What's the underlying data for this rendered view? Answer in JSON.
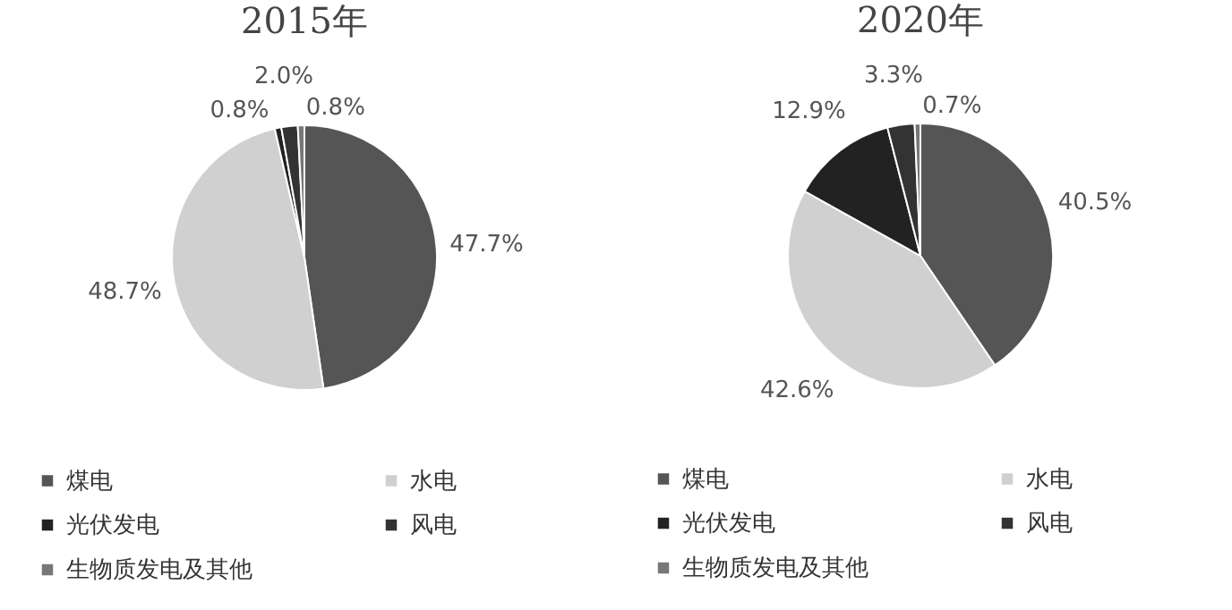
{
  "chart_data": [
    {
      "type": "pie",
      "title": "2015年",
      "categories": [
        "煤电",
        "水电",
        "光伏发电",
        "风电",
        "生物质发电及其他"
      ],
      "values": [
        47.7,
        48.7,
        0.8,
        2.0,
        0.8
      ],
      "value_labels": [
        "47.7%",
        "48.7%",
        "0.8%",
        "2.0%",
        "0.8%"
      ],
      "colors": [
        "#555555",
        "#d0d0d0",
        "#222222",
        "#333333",
        "#777777"
      ],
      "legend": "bottom"
    },
    {
      "type": "pie",
      "title": "2020年",
      "categories": [
        "煤电",
        "水电",
        "光伏发电",
        "风电",
        "生物质发电及其他"
      ],
      "values": [
        40.5,
        42.6,
        12.9,
        3.3,
        0.7
      ],
      "value_labels": [
        "40.5%",
        "42.6%",
        "12.9%",
        "3.3%",
        "0.7%"
      ],
      "colors": [
        "#555555",
        "#d0d0d0",
        "#222222",
        "#333333",
        "#777777"
      ],
      "legend": "bottom"
    }
  ]
}
